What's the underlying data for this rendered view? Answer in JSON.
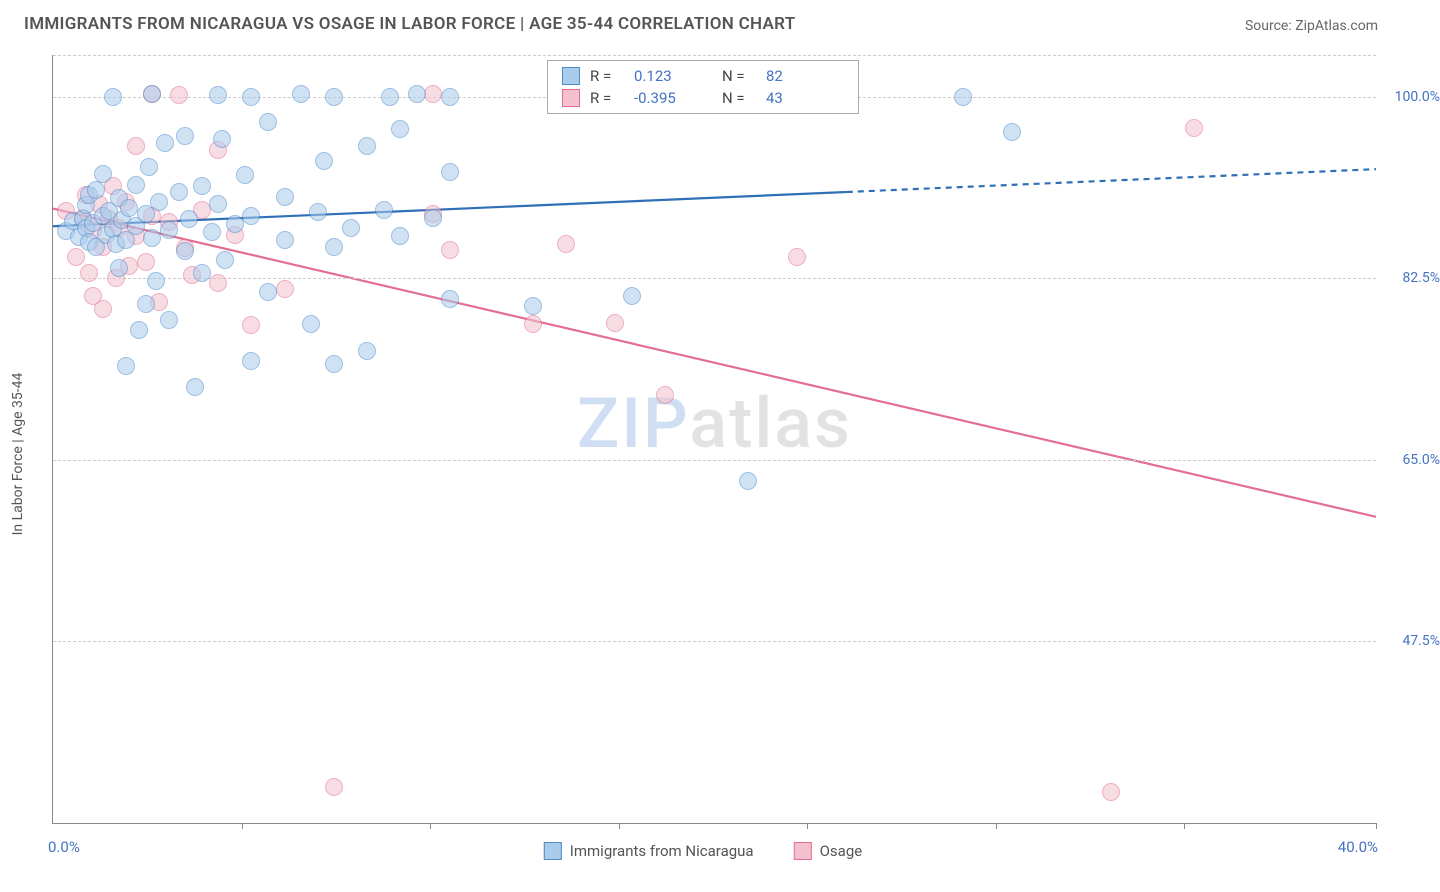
{
  "title": "IMMIGRANTS FROM NICARAGUA VS OSAGE IN LABOR FORCE | AGE 35-44 CORRELATION CHART",
  "source": "Source: ZipAtlas.com",
  "y_axis_title": "In Labor Force | Age 35-44",
  "watermark_left": "ZIP",
  "watermark_right": "atlas",
  "chart": {
    "type": "scatter",
    "xlim": [
      0,
      40
    ],
    "ylim": [
      30,
      104
    ],
    "x_min_label": "0.0%",
    "x_max_label": "40.0%",
    "y_ticks": [
      47.5,
      65.0,
      82.5,
      100.0
    ],
    "y_tick_labels": [
      "47.5%",
      "65.0%",
      "82.5%",
      "100.0%"
    ],
    "grid_lines_y": [
      47.5,
      65.0,
      82.5,
      100.0,
      104
    ],
    "x_ticks_approx": [
      0,
      5.7,
      11.4,
      17.1,
      22.8,
      28.5,
      34.2,
      40
    ],
    "background_color": "#ffffff",
    "grid_color": "#cccccc",
    "point_radius": 9,
    "point_opacity": 0.55,
    "series": [
      {
        "name": "Immigrants from Nicaragua",
        "color_fill": "#a9cbec",
        "color_stroke": "#4f8bc9",
        "R": "0.123",
        "N": "82",
        "trend": {
          "x1": 0,
          "y1": 87.5,
          "x2_solid": 24,
          "y2_solid": 90.8,
          "x2": 40,
          "y2": 93.0,
          "color": "#2f6fb6",
          "width": 2.2
        },
        "points": [
          [
            0.4,
            87
          ],
          [
            0.6,
            88
          ],
          [
            0.8,
            86.5
          ],
          [
            0.9,
            88.2
          ],
          [
            1.0,
            87.3
          ],
          [
            1.0,
            89.5
          ],
          [
            1.1,
            86
          ],
          [
            1.1,
            90.5
          ],
          [
            1.2,
            87.8
          ],
          [
            1.3,
            85.5
          ],
          [
            1.3,
            91
          ],
          [
            1.5,
            88.5
          ],
          [
            1.5,
            92.5
          ],
          [
            1.6,
            86.7
          ],
          [
            1.7,
            89
          ],
          [
            1.8,
            87.2
          ],
          [
            1.8,
            100
          ],
          [
            1.9,
            85.8
          ],
          [
            2.0,
            90.2
          ],
          [
            2.0,
            83.5
          ],
          [
            2.1,
            88.1
          ],
          [
            2.2,
            86.2
          ],
          [
            2.2,
            74
          ],
          [
            2.3,
            89.3
          ],
          [
            2.5,
            91.5
          ],
          [
            2.5,
            87.5
          ],
          [
            2.6,
            77.5
          ],
          [
            2.8,
            88.7
          ],
          [
            2.8,
            80
          ],
          [
            2.9,
            93.2
          ],
          [
            3.0,
            86.4
          ],
          [
            3.0,
            100.2
          ],
          [
            3.1,
            82.2
          ],
          [
            3.2,
            89.8
          ],
          [
            3.4,
            95.5
          ],
          [
            3.5,
            87.1
          ],
          [
            3.5,
            78.5
          ],
          [
            3.8,
            90.8
          ],
          [
            4.0,
            85.1
          ],
          [
            4.0,
            96.2
          ],
          [
            4.1,
            88.2
          ],
          [
            4.3,
            72
          ],
          [
            4.5,
            91.4
          ],
          [
            4.5,
            83
          ],
          [
            4.8,
            86.9
          ],
          [
            5.0,
            100.1
          ],
          [
            5.0,
            89.6
          ],
          [
            5.1,
            95.9
          ],
          [
            5.2,
            84.2
          ],
          [
            5.5,
            87.7
          ],
          [
            5.8,
            92.4
          ],
          [
            6.0,
            100
          ],
          [
            6.0,
            88.5
          ],
          [
            6.0,
            74.5
          ],
          [
            6.5,
            81.2
          ],
          [
            6.5,
            97.5
          ],
          [
            7.0,
            86.2
          ],
          [
            7.0,
            90.3
          ],
          [
            7.5,
            100.2
          ],
          [
            7.8,
            78.1
          ],
          [
            8.0,
            88.9
          ],
          [
            8.2,
            93.8
          ],
          [
            8.5,
            100
          ],
          [
            8.5,
            85.5
          ],
          [
            8.5,
            74.2
          ],
          [
            9.0,
            87.3
          ],
          [
            9.5,
            95.2
          ],
          [
            9.5,
            75.5
          ],
          [
            10.0,
            89.1
          ],
          [
            10.2,
            100
          ],
          [
            10.5,
            86.6
          ],
          [
            10.5,
            96.9
          ],
          [
            11.0,
            100.2
          ],
          [
            11.5,
            88.3
          ],
          [
            12.0,
            92.7
          ],
          [
            12.0,
            100
          ],
          [
            12.0,
            80.5
          ],
          [
            14.5,
            79.8
          ],
          [
            17.5,
            80.8
          ],
          [
            21.0,
            63
          ],
          [
            27.5,
            100
          ],
          [
            29.0,
            96.6
          ]
        ]
      },
      {
        "name": "Osage",
        "color_fill": "#f4c0ce",
        "color_stroke": "#e36f90",
        "R": "-0.395",
        "N": "43",
        "trend": {
          "x1": 0,
          "y1": 89.2,
          "x2_solid": 40,
          "y2_solid": 59.5,
          "x2": 40,
          "y2": 59.5,
          "color": "#e36f90",
          "width": 2.2
        },
        "points": [
          [
            0.4,
            89
          ],
          [
            0.7,
            84.5
          ],
          [
            0.9,
            88.3
          ],
          [
            1.0,
            90.5
          ],
          [
            1.1,
            83
          ],
          [
            1.2,
            87.1
          ],
          [
            1.2,
            80.8
          ],
          [
            1.4,
            89.6
          ],
          [
            1.5,
            85.5
          ],
          [
            1.5,
            79.5
          ],
          [
            1.7,
            88.2
          ],
          [
            1.8,
            91.4
          ],
          [
            1.9,
            82.5
          ],
          [
            2.0,
            87.3
          ],
          [
            2.2,
            89.8
          ],
          [
            2.3,
            83.7
          ],
          [
            2.5,
            86.6
          ],
          [
            2.5,
            95.2
          ],
          [
            2.8,
            84.1
          ],
          [
            3.0,
            88.5
          ],
          [
            3.0,
            100.2
          ],
          [
            3.2,
            80.2
          ],
          [
            3.5,
            87.9
          ],
          [
            3.8,
            100.1
          ],
          [
            4.0,
            85.4
          ],
          [
            4.2,
            82.8
          ],
          [
            4.5,
            89.1
          ],
          [
            5.0,
            94.8
          ],
          [
            5.0,
            82
          ],
          [
            5.5,
            86.7
          ],
          [
            6.0,
            78
          ],
          [
            7.0,
            81.5
          ],
          [
            8.5,
            33.5
          ],
          [
            11.5,
            88.7
          ],
          [
            11.5,
            100.2
          ],
          [
            12.0,
            85.2
          ],
          [
            14.5,
            78.1
          ],
          [
            15.5,
            85.8
          ],
          [
            17.0,
            78.2
          ],
          [
            18.5,
            71.2
          ],
          [
            22.5,
            84.5
          ],
          [
            32.0,
            33
          ],
          [
            34.5,
            97
          ]
        ]
      }
    ],
    "legend_top_labels": {
      "R_label": "R =",
      "N_label": "N ="
    }
  }
}
